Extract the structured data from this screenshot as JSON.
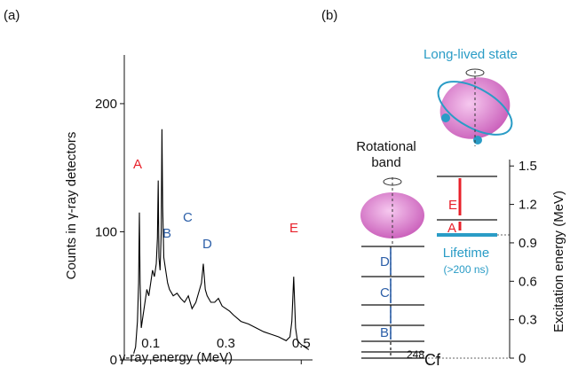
{
  "panel_labels": [
    "(a)",
    "(b)"
  ],
  "chart_data": {
    "type": "line",
    "x_label": "γ-ray energy (MeV)",
    "y_label": "Counts in γ-ray detectors",
    "color": "#000000",
    "x": [
      0.055,
      0.06,
      0.065,
      0.068,
      0.07,
      0.072,
      0.075,
      0.08,
      0.085,
      0.09,
      0.095,
      0.1,
      0.105,
      0.11,
      0.115,
      0.118,
      0.12,
      0.122,
      0.125,
      0.128,
      0.13,
      0.132,
      0.135,
      0.14,
      0.145,
      0.15,
      0.16,
      0.17,
      0.18,
      0.19,
      0.2,
      0.21,
      0.22,
      0.23,
      0.235,
      0.24,
      0.245,
      0.25,
      0.26,
      0.27,
      0.28,
      0.29,
      0.3,
      0.31,
      0.32,
      0.34,
      0.36,
      0.38,
      0.4,
      0.42,
      0.44,
      0.46,
      0.47,
      0.475,
      0.48,
      0.485,
      0.49,
      0.5,
      0.51,
      0.52
    ],
    "values": [
      5,
      10,
      30,
      60,
      115,
      60,
      25,
      35,
      45,
      55,
      50,
      60,
      70,
      65,
      75,
      95,
      140,
      80,
      70,
      100,
      180,
      120,
      80,
      70,
      60,
      55,
      50,
      52,
      48,
      45,
      50,
      40,
      45,
      55,
      60,
      75,
      55,
      50,
      45,
      45,
      48,
      42,
      40,
      38,
      35,
      30,
      28,
      25,
      22,
      20,
      18,
      15,
      18,
      30,
      65,
      25,
      15,
      12,
      10,
      8
    ],
    "xlim": [
      0.03,
      0.53
    ],
    "ylim": [
      0,
      238
    ],
    "xticks": [
      0.1,
      0.3,
      0.5
    ],
    "yticks": [
      0,
      100,
      200
    ],
    "annotations": [
      {
        "text": "A",
        "color": "#e8202a"
      },
      {
        "text": "B",
        "color": "#2c5fa8"
      },
      {
        "text": "C",
        "color": "#2c5fa8"
      },
      {
        "text": "D",
        "color": "#2c5fa8"
      },
      {
        "text": "E",
        "color": "#e8202a"
      }
    ]
  },
  "diagram": {
    "long_lived": "Long-lived state",
    "rotational": [
      "Rotational",
      "band"
    ],
    "transitions": [
      "E",
      "A",
      "D",
      "C",
      "B"
    ],
    "lifetime": "Lifetime",
    "lifetime_value": "(>200 ns)",
    "nucleus": {
      "mass": "248",
      "symbol": "Cf"
    },
    "energy_axis": {
      "label": "Excitation energy (MeV)",
      "lim": [
        0,
        1.55
      ],
      "ticks": [
        0,
        0.3,
        0.6,
        0.9,
        1.2,
        1.5
      ]
    }
  }
}
